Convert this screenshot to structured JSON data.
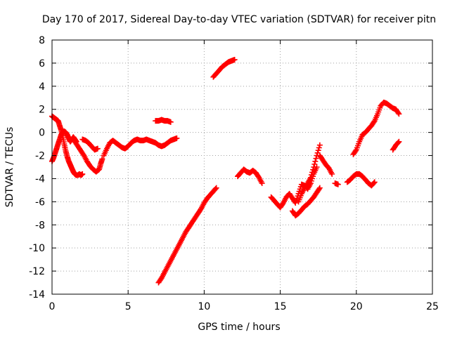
{
  "chart_data": {
    "type": "scatter",
    "title": "Day 170 of 2017, Sidereal Day-to-day VTEC variation (SDTVAR) for receiver pitn",
    "xlabel": "GPS time / hours",
    "ylabel": "SDTVAR / TECUs",
    "xlim": [
      0,
      25
    ],
    "ylim": [
      -14,
      8
    ],
    "xticks": [
      0,
      5,
      10,
      15,
      20,
      25
    ],
    "yticks": [
      -14,
      -12,
      -10,
      -8,
      -6,
      -4,
      -2,
      0,
      2,
      4,
      6,
      8
    ],
    "grid": true,
    "legend": "none",
    "marker": "plus",
    "color": "#ff0000",
    "series": [
      {
        "x": [
          0.0,
          0.1,
          0.2,
          0.3,
          0.4,
          0.5,
          0.6,
          0.7,
          0.8,
          0.9,
          1.0,
          1.1,
          1.2,
          1.3,
          1.4,
          1.5,
          1.6,
          1.7,
          1.8,
          1.9,
          2.0
        ],
        "values": [
          1.4,
          1.3,
          1.2,
          1.1,
          1.0,
          0.6,
          0.2,
          -0.3,
          -1.0,
          -1.6,
          -2.1,
          -2.5,
          -2.8,
          -3.1,
          -3.4,
          -3.6,
          -3.7,
          -3.7,
          -3.6,
          -3.7,
          -3.6
        ]
      },
      {
        "x": [
          0.0,
          0.1,
          0.2,
          0.3,
          0.4,
          0.5,
          0.6,
          0.7,
          0.8,
          0.9,
          1.0,
          1.1,
          1.2,
          1.3,
          1.4,
          1.5,
          1.6
        ],
        "values": [
          -2.5,
          -2.2,
          -1.8,
          -1.4,
          -1.0,
          -0.6,
          -0.2,
          0.0,
          0.1,
          0.0,
          -0.2,
          -0.5,
          -0.8,
          -0.6,
          -0.4,
          -0.6,
          -0.8
        ]
      },
      {
        "x": [
          1.5,
          1.7,
          1.9,
          2.1,
          2.3,
          2.5,
          2.7,
          2.9,
          3.1,
          3.2,
          3.3
        ],
        "values": [
          -0.8,
          -1.2,
          -1.6,
          -2.0,
          -2.5,
          -2.9,
          -3.2,
          -3.4,
          -3.2,
          -2.7,
          -2.3
        ]
      },
      {
        "x": [
          2.0,
          2.2,
          2.4,
          2.6,
          2.8,
          3.0
        ],
        "values": [
          -0.6,
          -0.7,
          -0.9,
          -1.2,
          -1.5,
          -1.4
        ]
      },
      {
        "x": [
          3.4,
          3.6,
          3.8,
          4.0,
          4.2,
          4.4,
          4.6,
          4.8,
          5.0,
          5.2,
          5.4,
          5.6,
          5.8,
          6.0,
          6.2,
          6.4,
          6.6,
          6.8,
          7.0,
          7.2,
          7.4,
          7.6,
          7.8,
          8.0,
          8.2
        ],
        "values": [
          -2.0,
          -1.4,
          -0.9,
          -0.7,
          -0.9,
          -1.1,
          -1.3,
          -1.4,
          -1.2,
          -0.9,
          -0.7,
          -0.6,
          -0.7,
          -0.7,
          -0.6,
          -0.7,
          -0.8,
          -0.9,
          -1.1,
          -1.2,
          -1.1,
          -0.9,
          -0.7,
          -0.6,
          -0.5
        ]
      },
      {
        "x": [
          6.8,
          7.0,
          7.2,
          7.4,
          7.6,
          7.8
        ],
        "values": [
          1.0,
          1.0,
          1.1,
          1.0,
          1.0,
          0.9
        ]
      },
      {
        "x": [
          7.0,
          7.2,
          7.4,
          7.6,
          7.8,
          8.0,
          8.2,
          8.4,
          8.6,
          8.8,
          9.0,
          9.2,
          9.4,
          9.6,
          9.8,
          10.0,
          10.2,
          10.4,
          10.6,
          10.8
        ],
        "values": [
          -13.0,
          -12.6,
          -12.1,
          -11.6,
          -11.1,
          -10.6,
          -10.1,
          -9.6,
          -9.1,
          -8.6,
          -8.2,
          -7.8,
          -7.4,
          -7.0,
          -6.6,
          -6.1,
          -5.7,
          -5.4,
          -5.1,
          -4.8
        ]
      },
      {
        "x": [
          10.6,
          10.8,
          11.0,
          11.2,
          11.4,
          11.6,
          11.8,
          12.0
        ],
        "values": [
          4.8,
          5.1,
          5.4,
          5.7,
          5.9,
          6.1,
          6.2,
          6.3
        ]
      },
      {
        "x": [
          12.2,
          12.4,
          12.6,
          12.8,
          13.0,
          13.2,
          13.4,
          13.6,
          13.8
        ],
        "values": [
          -3.8,
          -3.5,
          -3.2,
          -3.4,
          -3.5,
          -3.3,
          -3.5,
          -3.9,
          -4.4
        ]
      },
      {
        "x": [
          14.4,
          14.6,
          14.8,
          15.0,
          15.2,
          15.4,
          15.6,
          15.8,
          16.0,
          16.2,
          16.4,
          16.6,
          16.8,
          17.0,
          17.2,
          17.4
        ],
        "values": [
          -5.6,
          -5.9,
          -6.2,
          -6.5,
          -6.1,
          -5.6,
          -5.3,
          -5.7,
          -6.1,
          -5.3,
          -4.5,
          -4.6,
          -4.9,
          -4.4,
          -3.6,
          -3.0
        ]
      },
      {
        "x": [
          15.8,
          16.0,
          16.2,
          16.4,
          16.6,
          16.8,
          17.0,
          17.2,
          17.4,
          17.6
        ],
        "values": [
          -6.8,
          -7.2,
          -7.0,
          -6.7,
          -6.4,
          -6.2,
          -5.9,
          -5.6,
          -5.2,
          -4.8
        ]
      },
      {
        "x": [
          16.2,
          16.4,
          16.6,
          16.8,
          17.0,
          17.2,
          17.4,
          17.6
        ],
        "values": [
          -6.0,
          -5.3,
          -4.8,
          -4.4,
          -3.9,
          -3.0,
          -2.0,
          -1.1
        ]
      },
      {
        "x": [
          17.6,
          17.8,
          18.0,
          18.2,
          18.4
        ],
        "values": [
          -2.0,
          -2.4,
          -2.8,
          -3.1,
          -3.6
        ]
      },
      {
        "x": [
          18.6,
          18.8
        ],
        "values": [
          -4.4,
          -4.5
        ]
      },
      {
        "x": [
          19.4,
          19.6,
          19.8,
          20.0,
          20.2,
          20.4,
          20.6,
          20.8,
          21.0,
          21.2
        ],
        "values": [
          -4.3,
          -4.1,
          -3.8,
          -3.6,
          -3.6,
          -3.8,
          -4.1,
          -4.4,
          -4.6,
          -4.3
        ]
      },
      {
        "x": [
          19.8,
          20.0,
          20.2,
          20.4,
          20.6,
          20.8,
          21.0,
          21.2,
          21.4,
          21.6,
          21.8,
          22.0,
          22.2,
          22.4,
          22.6,
          22.8
        ],
        "values": [
          -1.9,
          -1.5,
          -0.8,
          -0.2,
          0.0,
          0.3,
          0.6,
          1.0,
          1.6,
          2.3,
          2.6,
          2.5,
          2.3,
          2.1,
          2.0,
          1.6
        ]
      },
      {
        "x": [
          22.4,
          22.6,
          22.8
        ],
        "values": [
          -1.5,
          -1.1,
          -0.8
        ]
      }
    ]
  }
}
